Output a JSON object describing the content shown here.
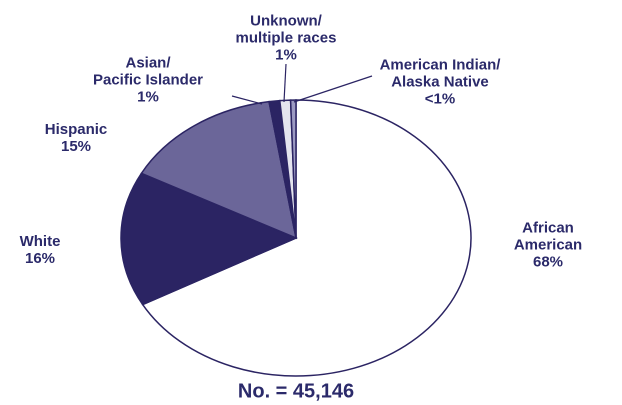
{
  "chart_data": {
    "type": "pie",
    "categories": [
      "African\nAmerican",
      "White",
      "Hispanic",
      "Asian/\nPacific Islander",
      "Unknown/\nmultiple races",
      "American Indian/\nAlaska Native"
    ],
    "values": [
      68,
      16,
      15,
      1,
      1,
      0.5
    ],
    "value_labels": [
      "68%",
      "16%",
      "15%",
      "1%",
      "1%",
      "<1%"
    ],
    "colors": [
      "#ffffff",
      "#2b2463",
      "#6b6699",
      "#2b2463",
      "#e4e4ee",
      "#9c9ac2"
    ],
    "note": "No. = 45,146"
  }
}
